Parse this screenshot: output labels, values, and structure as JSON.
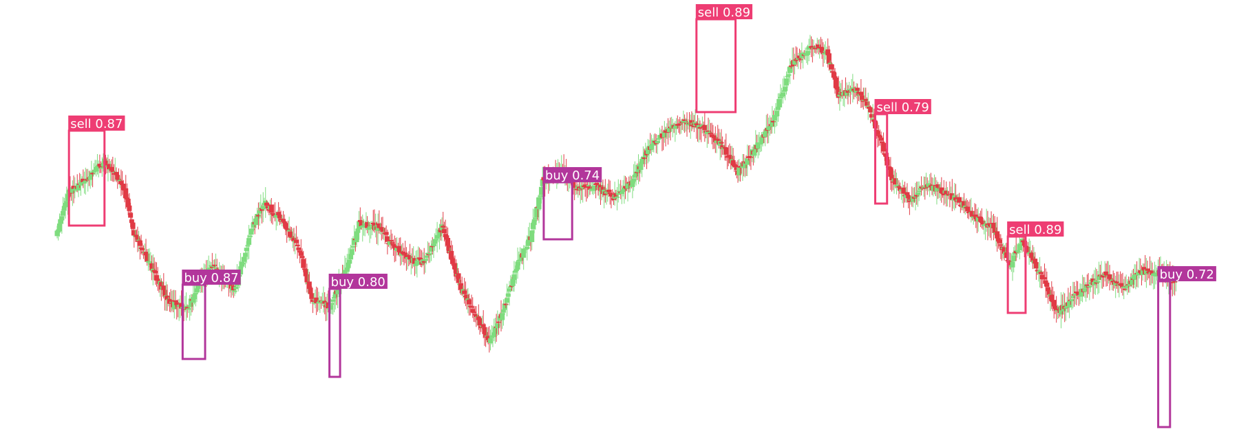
{
  "chart_data": {
    "type": "candlestick",
    "grid": false,
    "axes_visible": false,
    "ylim": [
      0,
      650
    ],
    "y_inverted": true,
    "colors": {
      "up": "#7edc7e",
      "down": "#e03a45",
      "sell": "#ee3d73",
      "buy": "#b2369b"
    },
    "anchors": [
      [
        0,
        335
      ],
      [
        10,
        280
      ],
      [
        25,
        260
      ],
      [
        40,
        235
      ],
      [
        55,
        265
      ],
      [
        65,
        340
      ],
      [
        80,
        390
      ],
      [
        95,
        440
      ],
      [
        110,
        450
      ],
      [
        120,
        410
      ],
      [
        130,
        385
      ],
      [
        150,
        420
      ],
      [
        165,
        330
      ],
      [
        175,
        295
      ],
      [
        190,
        320
      ],
      [
        205,
        365
      ],
      [
        215,
        435
      ],
      [
        230,
        445
      ],
      [
        245,
        390
      ],
      [
        255,
        325
      ],
      [
        270,
        330
      ],
      [
        285,
        360
      ],
      [
        300,
        380
      ],
      [
        310,
        380
      ],
      [
        325,
        330
      ],
      [
        340,
        415
      ],
      [
        355,
        465
      ],
      [
        365,
        495
      ],
      [
        375,
        460
      ],
      [
        390,
        380
      ],
      [
        400,
        345
      ],
      [
        410,
        265
      ],
      [
        425,
        245
      ],
      [
        440,
        275
      ],
      [
        455,
        270
      ],
      [
        470,
        288
      ],
      [
        485,
        265
      ],
      [
        500,
        215
      ],
      [
        515,
        190
      ],
      [
        530,
        175
      ],
      [
        545,
        185
      ],
      [
        560,
        210
      ],
      [
        575,
        250
      ],
      [
        590,
        215
      ],
      [
        605,
        175
      ],
      [
        620,
        95
      ],
      [
        635,
        70
      ],
      [
        650,
        75
      ],
      [
        660,
        140
      ],
      [
        675,
        130
      ],
      [
        685,
        155
      ],
      [
        695,
        200
      ],
      [
        705,
        260
      ],
      [
        720,
        290
      ],
      [
        735,
        270
      ],
      [
        750,
        280
      ],
      [
        760,
        290
      ],
      [
        775,
        315
      ],
      [
        790,
        330
      ],
      [
        805,
        385
      ],
      [
        815,
        350
      ],
      [
        830,
        395
      ],
      [
        845,
        455
      ],
      [
        860,
        430
      ],
      [
        875,
        410
      ],
      [
        885,
        400
      ],
      [
        900,
        420
      ],
      [
        915,
        395
      ],
      [
        930,
        395
      ],
      [
        945,
        410
      ]
    ],
    "annotations": [
      {
        "label": "sell 0.87",
        "class": "sell",
        "x0": 10,
        "x1": 40,
        "y0": 190,
        "y1": 328
      },
      {
        "label": "buy 0.87",
        "class": "buy",
        "x0": 106,
        "x1": 125,
        "y0": 414,
        "y1": 522
      },
      {
        "label": "buy 0.80",
        "class": "buy",
        "x0": 230,
        "x1": 239,
        "y0": 420,
        "y1": 548
      },
      {
        "label": "buy 0.74",
        "class": "buy",
        "x0": 411,
        "x1": 435,
        "y0": 265,
        "y1": 348
      },
      {
        "label": "sell 0.89",
        "class": "sell",
        "x0": 540,
        "x1": 573,
        "y0": 28,
        "y1": 163
      },
      {
        "label": "sell 0.79",
        "class": "sell",
        "x0": 691,
        "x1": 701,
        "y0": 166,
        "y1": 296
      },
      {
        "label": "sell 0.89",
        "class": "sell",
        "x0": 803,
        "x1": 818,
        "y0": 344,
        "y1": 455
      },
      {
        "label": "buy 0.72",
        "class": "buy",
        "x0": 930,
        "x1": 940,
        "y0": 409,
        "y1": 621
      }
    ]
  }
}
